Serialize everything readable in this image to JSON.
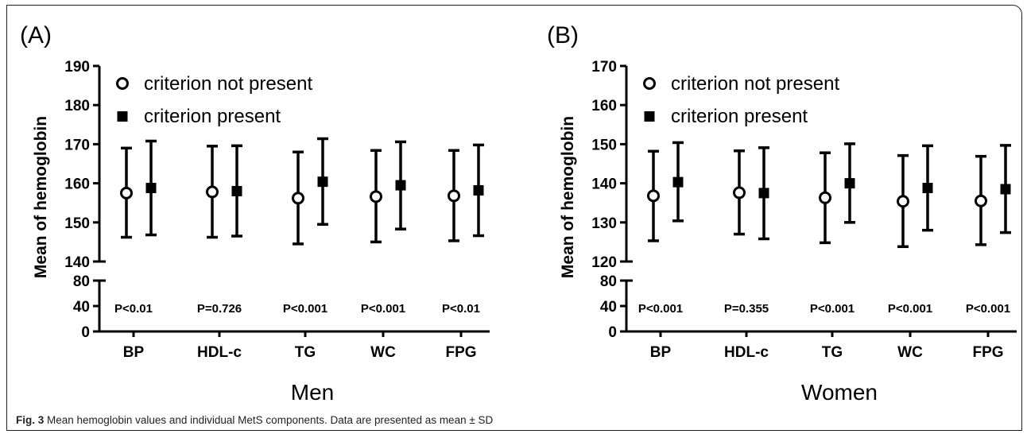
{
  "chart_data": [
    {
      "type": "errorbar",
      "panel_label": "(A)",
      "group_label": "Men",
      "ylabel": "Mean of hemoglobin",
      "upper_axis": {
        "range": [
          140,
          190
        ],
        "ticks": [
          "140",
          "150",
          "160",
          "170",
          "180",
          "190"
        ]
      },
      "lower_axis": {
        "range": [
          0,
          80
        ],
        "ticks": [
          "0",
          "40",
          "80"
        ]
      },
      "categories": [
        "BP",
        "HDL-c",
        "TG",
        "WC",
        "FPG"
      ],
      "series": [
        {
          "name": "criterion not present",
          "marker": "open-circle",
          "mean": [
            157.5,
            157.8,
            156.2,
            156.6,
            156.8
          ],
          "lower": [
            146.2,
            146.2,
            144.5,
            145.0,
            145.3
          ],
          "upper": [
            169.0,
            169.5,
            168.0,
            168.4,
            168.4
          ]
        },
        {
          "name": "criterion present",
          "marker": "filled-square",
          "mean": [
            158.8,
            158.0,
            160.4,
            159.5,
            158.2
          ],
          "lower": [
            146.8,
            146.5,
            149.5,
            148.3,
            146.6
          ],
          "upper": [
            170.8,
            169.6,
            171.4,
            170.6,
            169.8
          ]
        }
      ],
      "p_values": [
        "P<0.01",
        "P=0.726",
        "P<0.001",
        "P<0.001",
        "P<0.01"
      ],
      "legend_position": "top-left"
    },
    {
      "type": "errorbar",
      "panel_label": "(B)",
      "group_label": "Women",
      "ylabel": "Mean of hemoglobin",
      "upper_axis": {
        "range": [
          120,
          170
        ],
        "ticks": [
          "120",
          "130",
          "140",
          "150",
          "160",
          "170"
        ]
      },
      "lower_axis": {
        "range": [
          0,
          80
        ],
        "ticks": [
          "0",
          "40",
          "80"
        ]
      },
      "categories": [
        "BP",
        "HDL-c",
        "TG",
        "WC",
        "FPG"
      ],
      "series": [
        {
          "name": "criterion not present",
          "marker": "open-circle",
          "mean": [
            136.8,
            137.6,
            136.3,
            135.4,
            135.5
          ],
          "lower": [
            125.3,
            127.0,
            124.8,
            123.8,
            124.3
          ],
          "upper": [
            148.2,
            148.3,
            147.8,
            147.1,
            146.9
          ]
        },
        {
          "name": "criterion present",
          "marker": "filled-square",
          "mean": [
            140.3,
            137.5,
            140.0,
            138.8,
            138.5
          ],
          "lower": [
            130.4,
            125.8,
            130.0,
            128.0,
            127.4
          ],
          "upper": [
            150.4,
            149.1,
            150.1,
            149.6,
            149.7
          ]
        }
      ],
      "p_values": [
        "P<0.001",
        "P=0.355",
        "P<0.001",
        "P<0.001",
        "P<0.001"
      ],
      "legend_position": "top-left"
    }
  ],
  "caption": {
    "label": "Fig. 3",
    "text": " Mean hemoglobin values and individual MetS components. Data are presented as mean ± SD"
  },
  "colors": {
    "ink": "#000000",
    "caption": "#222222"
  }
}
